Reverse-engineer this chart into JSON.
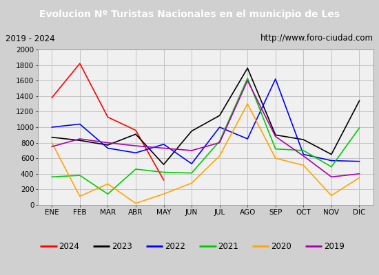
{
  "title": "Evolucion Nº Turistas Nacionales en el municipio de Les",
  "subtitle_left": "2019 - 2024",
  "subtitle_right": "http://www.foro-ciudad.com",
  "months": [
    "ENE",
    "FEB",
    "MAR",
    "ABR",
    "MAY",
    "JUN",
    "JUL",
    "AGO",
    "SEP",
    "OCT",
    "NOV",
    "DIC"
  ],
  "series_data": {
    "2024": [
      1380,
      1820,
      1130,
      960,
      320,
      null,
      null,
      null,
      null,
      null,
      null,
      null
    ],
    "2023": [
      870,
      830,
      770,
      910,
      520,
      950,
      1150,
      1760,
      900,
      840,
      650,
      1340
    ],
    "2022": [
      1000,
      1040,
      730,
      670,
      780,
      530,
      1000,
      850,
      1620,
      650,
      570,
      560
    ],
    "2021": [
      360,
      380,
      140,
      460,
      420,
      410,
      820,
      1630,
      720,
      700,
      490,
      990
    ],
    "2020": [
      800,
      110,
      270,
      20,
      140,
      280,
      630,
      1300,
      600,
      510,
      120,
      350
    ],
    "2019": [
      750,
      850,
      800,
      760,
      730,
      700,
      800,
      1600,
      880,
      630,
      360,
      400
    ]
  },
  "colors": {
    "2024": "#ff0000",
    "2023": "#000000",
    "2022": "#0000ff",
    "2021": "#00cc00",
    "2020": "#ffa500",
    "2019": "#aa00aa"
  },
  "ylim": [
    0,
    2000
  ],
  "yticks": [
    0,
    200,
    400,
    600,
    800,
    1000,
    1200,
    1400,
    1600,
    1800,
    2000
  ],
  "title_bg": "#4a86c8",
  "title_color": "#ffffff",
  "subtitle_bg": "#d8d8d8",
  "plot_bg": "#d0d0d0",
  "inner_bg": "#f0f0f0",
  "grid_color": "#bbbbbb",
  "legend_bg": "#ffffff"
}
